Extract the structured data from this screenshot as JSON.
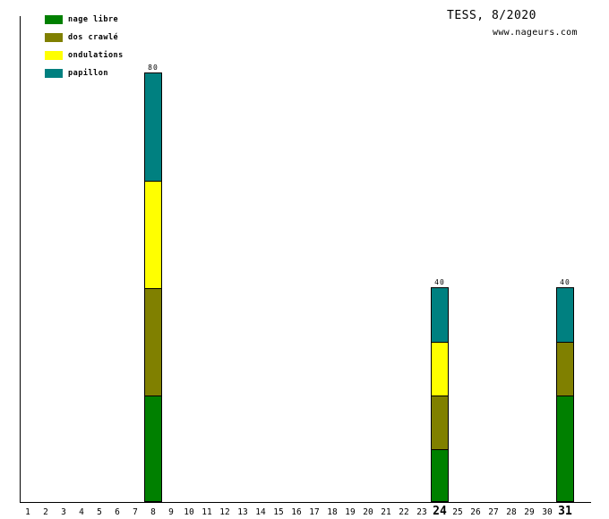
{
  "header": {
    "title": "TESS, 8/2020",
    "site": "www.nageurs.com"
  },
  "chart_data": {
    "type": "bar",
    "stacked": true,
    "title": "TESS, 8/2020",
    "subtitle": "www.nageurs.com",
    "xlabel": "",
    "ylabel": "",
    "ylim": [
      0,
      80
    ],
    "grid": false,
    "legend_position": "top-left",
    "x_categories": [
      "1",
      "2",
      "3",
      "4",
      "5",
      "6",
      "7",
      "8",
      "9",
      "10",
      "11",
      "12",
      "13",
      "14",
      "15",
      "16",
      "17",
      "18",
      "19",
      "20",
      "21",
      "22",
      "23",
      "24",
      "25",
      "26",
      "27",
      "28",
      "29",
      "30",
      "31"
    ],
    "bold_x_labels": [
      "24",
      "31"
    ],
    "series": [
      {
        "name": "nage libre",
        "color": "#008000"
      },
      {
        "name": "dos crawlé",
        "color": "#808000"
      },
      {
        "name": "ondulations",
        "color": "#ffff00"
      },
      {
        "name": "papillon",
        "color": "#008080"
      }
    ],
    "bars": [
      {
        "day": 8,
        "total": 80,
        "total_label": "80",
        "segments": [
          20,
          20,
          20,
          20
        ]
      },
      {
        "day": 24,
        "total": 40,
        "total_label": "40",
        "segments": [
          10,
          10,
          10,
          10
        ]
      },
      {
        "day": 31,
        "total": 40,
        "total_label": "40",
        "segments": [
          20,
          10,
          0,
          10
        ]
      }
    ]
  }
}
